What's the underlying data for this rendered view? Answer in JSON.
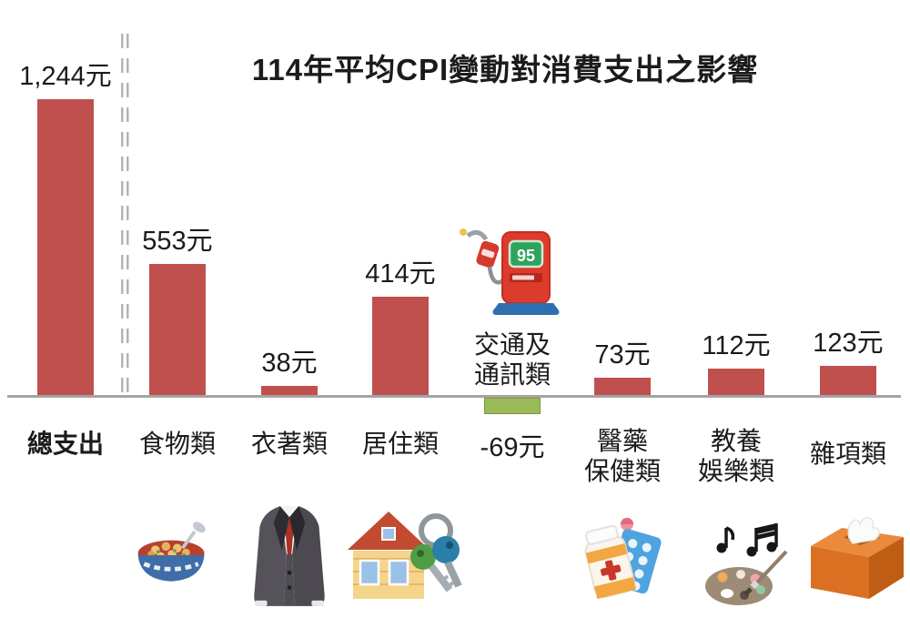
{
  "title": "114年平均CPI變動對消費支出之影響",
  "colors": {
    "bar_positive": "#c0504d",
    "bar_negative": "#9bbb59",
    "bar_negative_border": "#7f973f",
    "axis": "#a4a4a4",
    "separator": "#b4b4b4",
    "text": "#1b1b1b"
  },
  "icons": {
    "gas_pump_label": "95"
  },
  "chart_data": {
    "type": "bar",
    "title": "114年平均CPI變動對消費支出之影響",
    "xlabel": "",
    "ylabel": "元",
    "ylim": [
      -100,
      1300
    ],
    "grid": false,
    "legend": "none",
    "categories": [
      "總支出",
      "食物類",
      "衣著類",
      "居住類",
      "交通及通訊類",
      "醫藥保健類",
      "教養娛樂類",
      "雜項類"
    ],
    "values": [
      1244,
      553,
      38,
      414,
      -69,
      73,
      112,
      123
    ],
    "bars": [
      {
        "id": "total",
        "label": "總支出",
        "value": 1244,
        "value_label": "1,244元",
        "emphasis": true
      },
      {
        "id": "food",
        "label": "食物類",
        "value": 553,
        "value_label": "553元",
        "icon": "food-bowl"
      },
      {
        "id": "clothing",
        "label": "衣著類",
        "value": 38,
        "value_label": "38元",
        "icon": "suit"
      },
      {
        "id": "housing",
        "label": "居住類",
        "value": 414,
        "value_label": "414元",
        "icon": "house-keys"
      },
      {
        "id": "transport",
        "label": "交通及通訊類",
        "label_lines": [
          "交通及",
          "通訊類"
        ],
        "value": -69,
        "value_label": "-69元",
        "icon": "gas-pump"
      },
      {
        "id": "medical",
        "label": "醫藥保健類",
        "label_lines": [
          "醫藥",
          "保健類"
        ],
        "value": 73,
        "value_label": "73元",
        "icon": "medicine"
      },
      {
        "id": "education",
        "label": "教養娛樂類",
        "label_lines": [
          "教養",
          "娛樂類"
        ],
        "value": 112,
        "value_label": "112元",
        "icon": "arts-music"
      },
      {
        "id": "misc",
        "label": "雜項類",
        "value": 123,
        "value_label": "123元",
        "icon": "tissue-box"
      }
    ],
    "annotations": "總支出 separated from category bars by a grey double dashed line"
  }
}
